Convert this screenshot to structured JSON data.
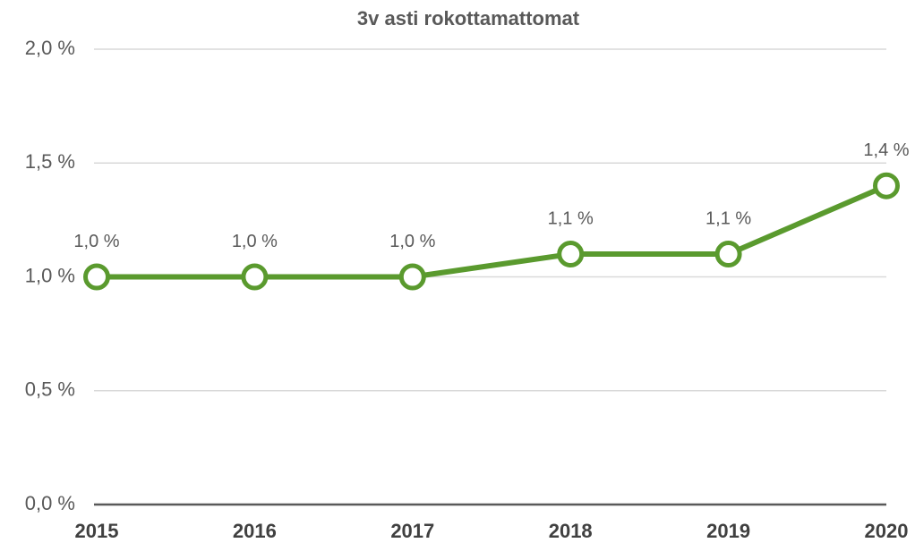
{
  "chart_data": {
    "type": "line",
    "title": "3v asti rokottamattomat",
    "categories": [
      "2015",
      "2016",
      "2017",
      "2018",
      "2019",
      "2020"
    ],
    "series": [
      {
        "name": "3v asti rokottamattomat",
        "color": "#5a9a2e",
        "values": [
          1.0,
          1.0,
          1.0,
          1.1,
          1.1,
          1.4
        ],
        "value_labels": [
          "1,0 %",
          "1,0 %",
          "1,0 %",
          "1,1 %",
          "1,1 %",
          "1,4 %"
        ]
      }
    ],
    "ylim": [
      0,
      2
    ],
    "yticks": [
      {
        "value": 0,
        "label": "0,0 %"
      },
      {
        "value": 0.5,
        "label": "0,5 %"
      },
      {
        "value": 1,
        "label": "1,0 %"
      },
      {
        "value": 1.5,
        "label": "1,5 %"
      },
      {
        "value": 2,
        "label": "2,0 %"
      }
    ],
    "grid": true
  }
}
